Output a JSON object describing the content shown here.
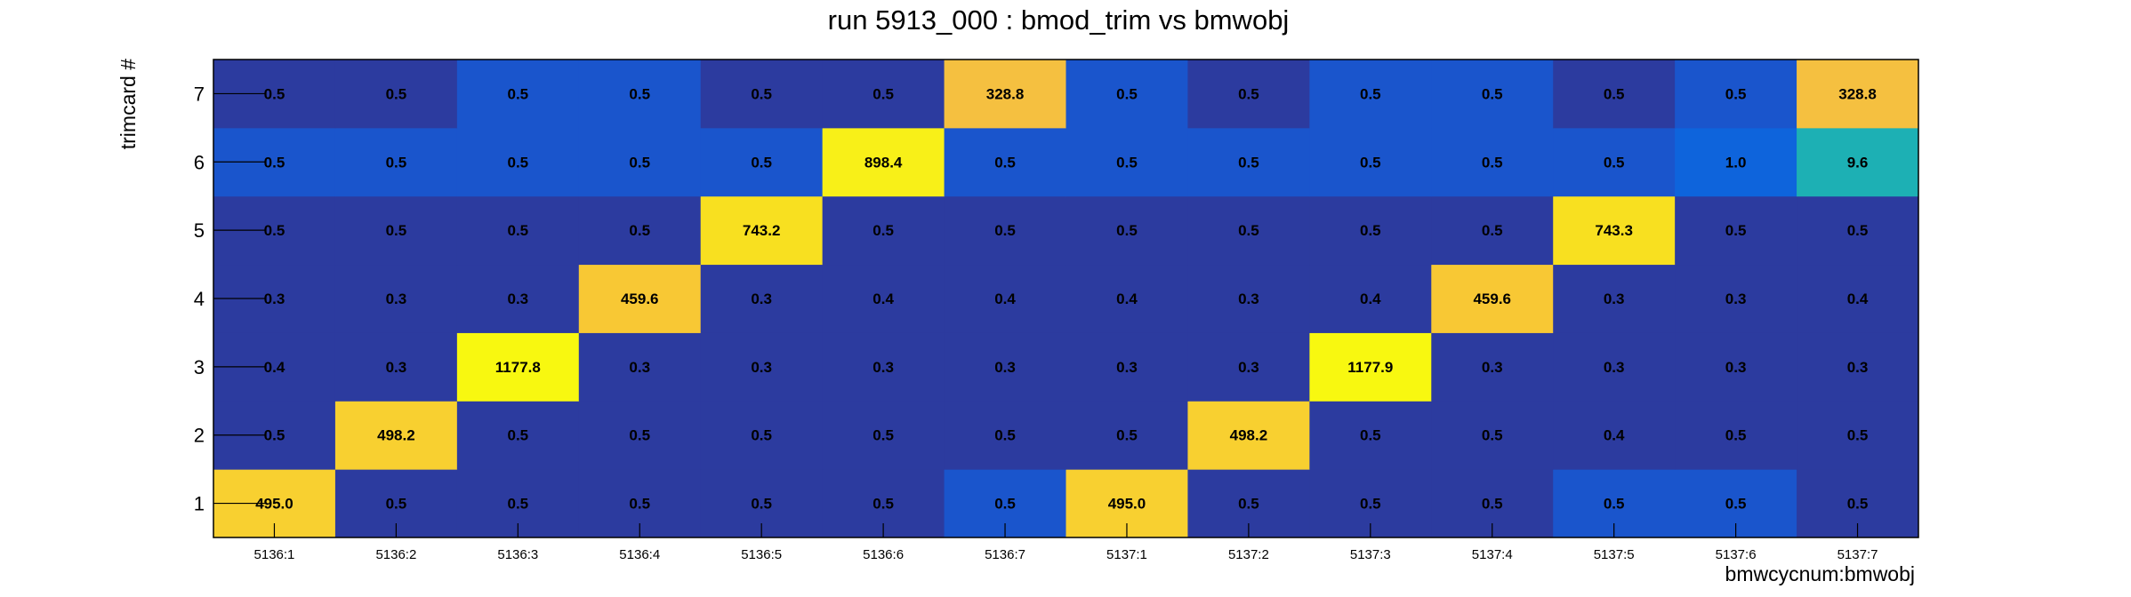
{
  "chart_data": {
    "type": "heatmap",
    "title": "run 5913_000 : bmod_trim vs bmwobj",
    "xlabel": "bmwcycnum:bmwobj",
    "ylabel": "trimcard #",
    "x_categories": [
      "5136:1",
      "5136:2",
      "5136:3",
      "5136:4",
      "5136:5",
      "5136:6",
      "5136:7",
      "5137:1",
      "5137:2",
      "5137:3",
      "5137:4",
      "5137:5",
      "5137:6",
      "5137:7"
    ],
    "y_categories": [
      "1",
      "2",
      "3",
      "4",
      "5",
      "6",
      "7"
    ],
    "value_labels": [
      [
        "495.0",
        "0.5",
        "0.5",
        "0.5",
        "0.5",
        "0.5",
        "0.5",
        "495.0",
        "0.5",
        "0.5",
        "0.5",
        "0.5",
        "0.5",
        "0.5"
      ],
      [
        "0.5",
        "498.2",
        "0.5",
        "0.5",
        "0.5",
        "0.5",
        "0.5",
        "0.5",
        "498.2",
        "0.5",
        "0.5",
        "0.4",
        "0.5",
        "0.5"
      ],
      [
        "0.4",
        "0.3",
        "1177.8",
        "0.3",
        "0.3",
        "0.3",
        "0.3",
        "0.3",
        "0.3",
        "1177.9",
        "0.3",
        "0.3",
        "0.3",
        "0.3"
      ],
      [
        "0.3",
        "0.3",
        "0.3",
        "459.6",
        "0.3",
        "0.4",
        "0.4",
        "0.4",
        "0.3",
        "0.4",
        "459.6",
        "0.3",
        "0.3",
        "0.4"
      ],
      [
        "0.5",
        "0.5",
        "0.5",
        "0.5",
        "743.2",
        "0.5",
        "0.5",
        "0.5",
        "0.5",
        "0.5",
        "0.5",
        "743.3",
        "0.5",
        "0.5"
      ],
      [
        "0.5",
        "0.5",
        "0.5",
        "0.5",
        "0.5",
        "898.4",
        "0.5",
        "0.5",
        "0.5",
        "0.5",
        "0.5",
        "0.5",
        "1.0",
        "9.6"
      ],
      [
        "0.5",
        "0.5",
        "0.5",
        "0.5",
        "0.5",
        "0.5",
        "328.8",
        "0.5",
        "0.5",
        "0.5",
        "0.5",
        "0.5",
        "0.5",
        "328.8"
      ]
    ],
    "cell_colors": [
      [
        "#f8d030",
        "#2c3b9f",
        "#2c3b9f",
        "#2c3b9f",
        "#2c3b9f",
        "#2c3b9f",
        "#1a55cc",
        "#f8d030",
        "#2c3b9f",
        "#2c3b9f",
        "#2c3b9f",
        "#1a55cc",
        "#1a55cc",
        "#2c3b9f"
      ],
      [
        "#2c3b9f",
        "#f8d030",
        "#2c3b9f",
        "#2c3b9f",
        "#2c3b9f",
        "#2c3b9f",
        "#2c3b9f",
        "#2c3b9f",
        "#f8d030",
        "#2c3b9f",
        "#2c3b9f",
        "#2c3b9f",
        "#2c3b9f",
        "#2c3b9f"
      ],
      [
        "#2c3b9f",
        "#2c3b9f",
        "#f8f810",
        "#2c3b9f",
        "#2c3b9f",
        "#2c3b9f",
        "#2c3b9f",
        "#2c3b9f",
        "#2c3b9f",
        "#f8f810",
        "#2c3b9f",
        "#2c3b9f",
        "#2c3b9f",
        "#2c3b9f"
      ],
      [
        "#2c3b9f",
        "#2c3b9f",
        "#2c3b9f",
        "#f8c834",
        "#2c3b9f",
        "#2c3b9f",
        "#2c3b9f",
        "#2c3b9f",
        "#2c3b9f",
        "#2c3b9f",
        "#f8c834",
        "#2c3b9f",
        "#2c3b9f",
        "#2c3b9f"
      ],
      [
        "#2c3b9f",
        "#2c3b9f",
        "#2c3b9f",
        "#2c3b9f",
        "#f8e020",
        "#2c3b9f",
        "#2c3b9f",
        "#2c3b9f",
        "#2c3b9f",
        "#2c3b9f",
        "#2c3b9f",
        "#f8e020",
        "#2c3b9f",
        "#2c3b9f"
      ],
      [
        "#1a55cc",
        "#1a55cc",
        "#1a55cc",
        "#1a55cc",
        "#1a55cc",
        "#f8f018",
        "#1a55cc",
        "#1a55cc",
        "#1a55cc",
        "#1a55cc",
        "#1a55cc",
        "#1a55cc",
        "#0e64dc",
        "#1db0b4"
      ],
      [
        "#2c3b9f",
        "#2c3b9f",
        "#1a55cc",
        "#1a55cc",
        "#2c3b9f",
        "#2c3b9f",
        "#f5c040",
        "#1a55cc",
        "#2c3b9f",
        "#1a55cc",
        "#1a55cc",
        "#2c3b9f",
        "#1a55cc",
        "#f5c040"
      ]
    ],
    "grid": false
  }
}
